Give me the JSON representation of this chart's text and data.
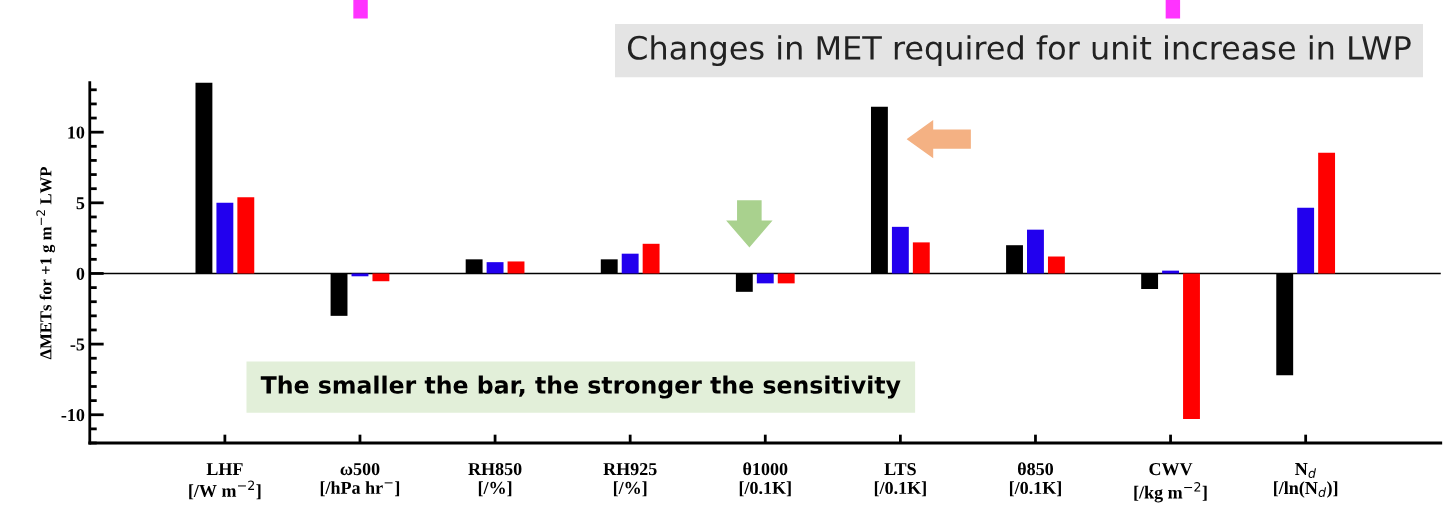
{
  "chart_data": {
    "type": "bar",
    "title": "Changes in MET required for unit increase in LWP",
    "ylabel": "ΔMETs for +1 g m$^{−2}$ LWP",
    "categories": [
      "LHF\n[/W m$^{−2}$]",
      "ω500\n[/hPa hr$^{−}$]",
      "RH850\n[/%]",
      "RH925\n[/%]",
      "θ1000\n[/0.1K]",
      "LTS\n[/0.1K]",
      "θ850\n[/0.1K]",
      "CWV\n[/kg m$^{−2}$]",
      "N$_{d}$\n[/ln(N$_{d}$)]"
    ],
    "series": [
      {
        "color": "#000000",
        "values": [
          13.5,
          -3.0,
          1.0,
          1.0,
          -1.3,
          11.8,
          2.0,
          -1.1,
          -7.2
        ]
      },
      {
        "color": "#2200ee",
        "values": [
          5.0,
          -0.2,
          0.8,
          1.4,
          -0.7,
          3.3,
          3.1,
          0.2,
          4.65
        ]
      },
      {
        "color": "#ff0000",
        "values": [
          5.4,
          -0.55,
          0.85,
          2.1,
          -0.7,
          2.2,
          1.2,
          -10.3,
          8.55
        ]
      }
    ],
    "ylim": [
      -12,
      13.5
    ],
    "yticks": [
      -10,
      -5,
      0,
      5,
      10
    ],
    "ref_lines": [
      {
        "axis": "y",
        "value": 0,
        "color": "#000000"
      }
    ],
    "annotations": [
      "The smaller the bar, the stronger the sensitivity"
    ],
    "grid": false,
    "legend": false
  }
}
